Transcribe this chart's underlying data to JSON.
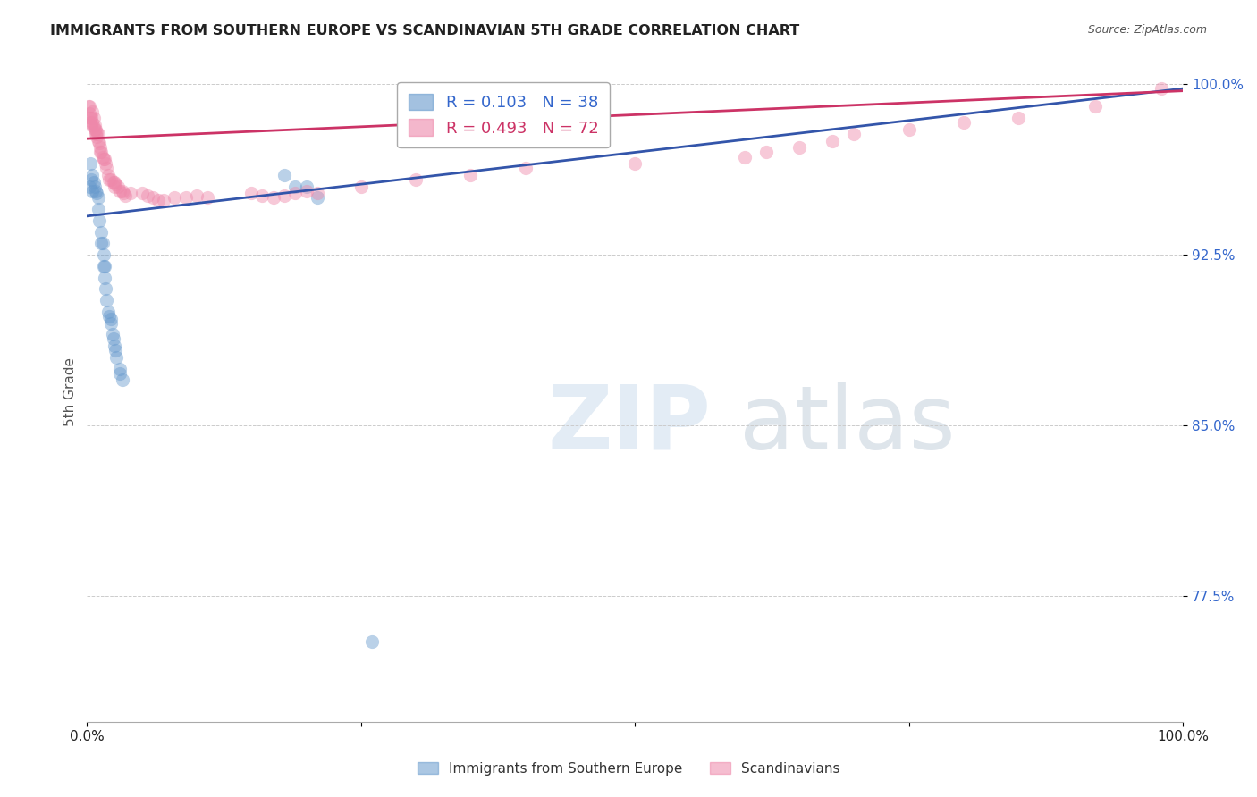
{
  "title": "IMMIGRANTS FROM SOUTHERN EUROPE VS SCANDINAVIAN 5TH GRADE CORRELATION CHART",
  "source": "Source: ZipAtlas.com",
  "ylabel": "5th Grade",
  "y_tick_labels": [
    "77.5%",
    "85.0%",
    "92.5%",
    "100.0%"
  ],
  "y_tick_vals": [
    0.775,
    0.85,
    0.925,
    1.0
  ],
  "legend": [
    {
      "label": "R = 0.103   N = 38",
      "color": "#6699cc",
      "text_color": "#3366cc"
    },
    {
      "label": "R = 0.493   N = 72",
      "color": "#ee88aa",
      "text_color": "#cc3366"
    }
  ],
  "blue_scatter_x": [
    0.002,
    0.003,
    0.004,
    0.005,
    0.005,
    0.006,
    0.007,
    0.008,
    0.009,
    0.01,
    0.01,
    0.011,
    0.013,
    0.013,
    0.014,
    0.015,
    0.015,
    0.016,
    0.016,
    0.017,
    0.018,
    0.019,
    0.02,
    0.022,
    0.022,
    0.023,
    0.024,
    0.025,
    0.026,
    0.027,
    0.03,
    0.03,
    0.032,
    0.18,
    0.19,
    0.2,
    0.21,
    0.26
  ],
  "blue_scatter_y": [
    0.955,
    0.965,
    0.958,
    0.96,
    0.953,
    0.957,
    0.955,
    0.953,
    0.952,
    0.95,
    0.945,
    0.94,
    0.935,
    0.93,
    0.93,
    0.925,
    0.92,
    0.92,
    0.915,
    0.91,
    0.905,
    0.9,
    0.898,
    0.897,
    0.895,
    0.89,
    0.888,
    0.885,
    0.883,
    0.88,
    0.875,
    0.873,
    0.87,
    0.96,
    0.955,
    0.955,
    0.95,
    0.755
  ],
  "pink_scatter_x": [
    0.001,
    0.002,
    0.002,
    0.003,
    0.003,
    0.004,
    0.004,
    0.005,
    0.005,
    0.006,
    0.006,
    0.007,
    0.007,
    0.008,
    0.008,
    0.009,
    0.009,
    0.01,
    0.01,
    0.011,
    0.012,
    0.012,
    0.013,
    0.014,
    0.015,
    0.016,
    0.017,
    0.018,
    0.019,
    0.02,
    0.022,
    0.024,
    0.025,
    0.025,
    0.026,
    0.028,
    0.03,
    0.032,
    0.033,
    0.035,
    0.04,
    0.05,
    0.055,
    0.06,
    0.065,
    0.07,
    0.08,
    0.09,
    0.1,
    0.11,
    0.15,
    0.16,
    0.17,
    0.18,
    0.19,
    0.2,
    0.21,
    0.25,
    0.3,
    0.35,
    0.4,
    0.5,
    0.6,
    0.62,
    0.65,
    0.68,
    0.7,
    0.75,
    0.8,
    0.85,
    0.92,
    0.98
  ],
  "pink_scatter_y": [
    0.99,
    0.99,
    0.987,
    0.985,
    0.983,
    0.982,
    0.985,
    0.988,
    0.983,
    0.985,
    0.981,
    0.982,
    0.98,
    0.98,
    0.978,
    0.979,
    0.977,
    0.978,
    0.975,
    0.974,
    0.972,
    0.97,
    0.97,
    0.968,
    0.967,
    0.967,
    0.965,
    0.963,
    0.96,
    0.958,
    0.958,
    0.957,
    0.957,
    0.955,
    0.956,
    0.955,
    0.953,
    0.953,
    0.952,
    0.951,
    0.952,
    0.952,
    0.951,
    0.95,
    0.949,
    0.949,
    0.95,
    0.95,
    0.951,
    0.95,
    0.952,
    0.951,
    0.95,
    0.951,
    0.952,
    0.953,
    0.952,
    0.955,
    0.958,
    0.96,
    0.963,
    0.965,
    0.968,
    0.97,
    0.972,
    0.975,
    0.978,
    0.98,
    0.983,
    0.985,
    0.99,
    0.998
  ],
  "blue_line_x": [
    0.0,
    1.0
  ],
  "blue_line_y": [
    0.942,
    0.998
  ],
  "pink_line_x": [
    0.0,
    1.0
  ],
  "pink_line_y": [
    0.976,
    0.997
  ],
  "xlim": [
    0.0,
    1.0
  ],
  "ylim": [
    0.72,
    1.01
  ],
  "bg_color": "#ffffff",
  "blue_color": "#6699cc",
  "pink_color": "#ee88aa",
  "blue_line_color": "#3355aa",
  "pink_line_color": "#cc3366",
  "scatter_size": 120,
  "scatter_alpha": 0.45,
  "line_width": 2.0,
  "bottom_legend": [
    {
      "label": "Immigrants from Southern Europe",
      "color": "#6699cc"
    },
    {
      "label": "Scandinavians",
      "color": "#ee88aa"
    }
  ]
}
